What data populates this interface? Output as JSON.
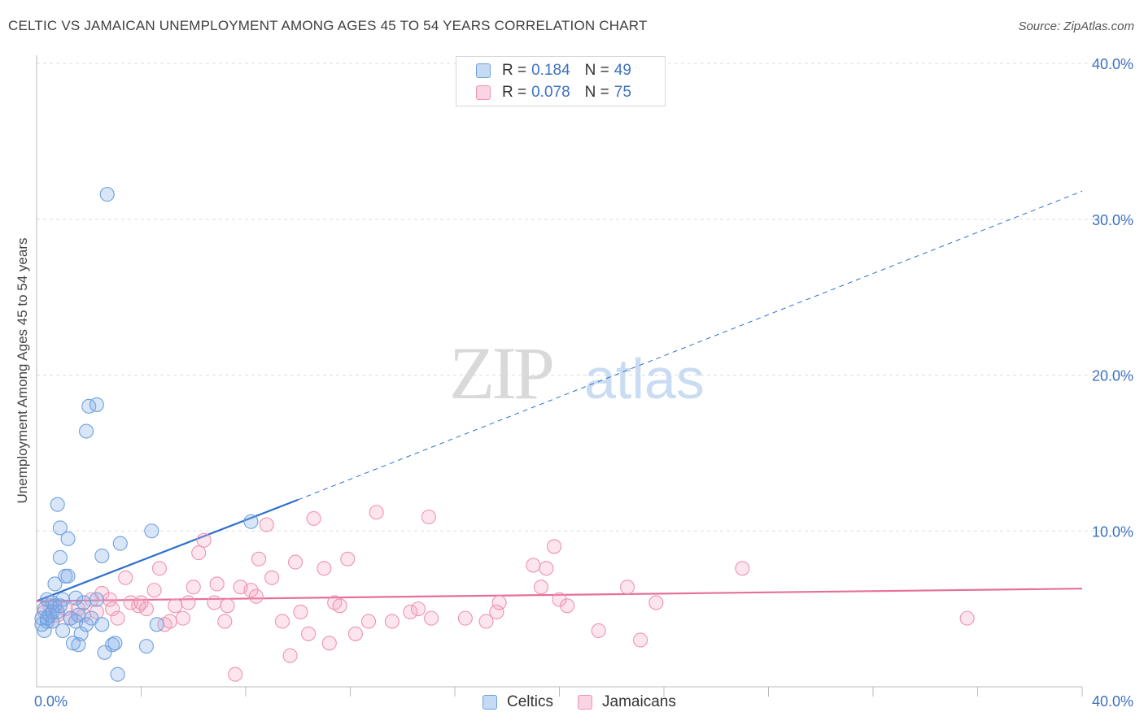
{
  "title": "CELTIC VS JAMAICAN UNEMPLOYMENT AMONG AGES 45 TO 54 YEARS CORRELATION CHART",
  "source": "Source: ZipAtlas.com",
  "watermark": {
    "zip": "ZIP",
    "atlas": "atlas"
  },
  "colors": {
    "celtic_fill": "rgba(126,172,232,0.30)",
    "celtic_stroke": "#6fa0dd",
    "celtic_line": "#2e6fcf",
    "jamaican_fill": "rgba(244,160,190,0.28)",
    "jamaican_stroke": "#ee93b3",
    "jamaican_line": "#e4709a",
    "axis_text": "#3d72c2"
  },
  "legend": {
    "celtic": {
      "r_label": "R =",
      "r_value": "0.184",
      "n_label": "N =",
      "n_value": "49"
    },
    "jamaican": {
      "r_label": "R =",
      "r_value": "0.078",
      "n_label": "N =",
      "n_value": "75"
    }
  },
  "chart_data": {
    "type": "scatter",
    "title": "CELTIC VS JAMAICAN UNEMPLOYMENT AMONG AGES 45 TO 54 YEARS CORRELATION CHART",
    "xlabel": "",
    "ylabel": "Unemployment Among Ages 45 to 54 years",
    "xlim": [
      0,
      40
    ],
    "ylim": [
      0,
      40
    ],
    "x_tick_labels": [
      "0.0%",
      "40.0%"
    ],
    "y_tick_labels": [
      "10.0%",
      "20.0%",
      "30.0%",
      "40.0%"
    ],
    "y_ticks": [
      10,
      20,
      30,
      40
    ],
    "grid": true,
    "legend_position": "bottom-center",
    "series": [
      {
        "name": "Celtics",
        "r": 0.184,
        "n": 49,
        "trend": {
          "x0": 0,
          "y0": 5.5,
          "x1": 10,
          "y1": 12.0,
          "dashed_to_x": 40,
          "dashed_to_y": 31.8
        },
        "points": [
          [
            0.2,
            4.0
          ],
          [
            0.2,
            4.4
          ],
          [
            0.3,
            3.6
          ],
          [
            0.3,
            5.0
          ],
          [
            0.4,
            4.2
          ],
          [
            0.4,
            5.6
          ],
          [
            0.5,
            4.6
          ],
          [
            0.6,
            5.4
          ],
          [
            0.6,
            4.2
          ],
          [
            0.7,
            6.6
          ],
          [
            0.7,
            5.2
          ],
          [
            0.8,
            4.8
          ],
          [
            0.8,
            11.7
          ],
          [
            0.9,
            10.2
          ],
          [
            0.9,
            8.3
          ],
          [
            1.0,
            3.6
          ],
          [
            1.0,
            5.6
          ],
          [
            1.1,
            7.1
          ],
          [
            1.2,
            9.5
          ],
          [
            1.2,
            7.1
          ],
          [
            1.3,
            4.4
          ],
          [
            1.4,
            2.8
          ],
          [
            1.5,
            4.2
          ],
          [
            1.5,
            5.7
          ],
          [
            1.6,
            4.6
          ],
          [
            1.7,
            3.4
          ],
          [
            1.6,
            2.7
          ],
          [
            1.8,
            5.4
          ],
          [
            1.9,
            4.0
          ],
          [
            2.0,
            18.0
          ],
          [
            1.9,
            16.4
          ],
          [
            2.3,
            18.1
          ],
          [
            2.5,
            4.0
          ],
          [
            2.5,
            8.4
          ],
          [
            2.6,
            2.2
          ],
          [
            2.7,
            31.6
          ],
          [
            2.9,
            2.7
          ],
          [
            3.0,
            2.8
          ],
          [
            3.1,
            0.8
          ],
          [
            3.2,
            9.2
          ],
          [
            2.3,
            5.6
          ],
          [
            4.2,
            2.6
          ],
          [
            4.4,
            10.0
          ],
          [
            4.6,
            4.0
          ],
          [
            8.2,
            10.6
          ],
          [
            0.4,
            4.4
          ],
          [
            0.6,
            4.8
          ],
          [
            0.9,
            5.2
          ],
          [
            2.1,
            4.4
          ]
        ]
      },
      {
        "name": "Jamaicans",
        "r": 0.078,
        "n": 75,
        "trend": {
          "x0": 0,
          "y0": 5.5,
          "x1": 40,
          "y1": 6.3
        },
        "points": [
          [
            0.3,
            4.8
          ],
          [
            0.5,
            5.2
          ],
          [
            0.6,
            4.2
          ],
          [
            0.8,
            4.6
          ],
          [
            1.1,
            5.0
          ],
          [
            1.3,
            4.4
          ],
          [
            1.6,
            5.0
          ],
          [
            1.8,
            4.6
          ],
          [
            2.1,
            5.6
          ],
          [
            2.3,
            4.8
          ],
          [
            2.5,
            6.0
          ],
          [
            2.9,
            5.0
          ],
          [
            3.1,
            4.4
          ],
          [
            3.4,
            7.0
          ],
          [
            3.6,
            5.4
          ],
          [
            3.9,
            5.2
          ],
          [
            4.0,
            5.4
          ],
          [
            4.2,
            5.0
          ],
          [
            4.5,
            6.2
          ],
          [
            4.7,
            7.6
          ],
          [
            4.9,
            4.0
          ],
          [
            5.1,
            4.2
          ],
          [
            5.3,
            5.2
          ],
          [
            5.6,
            4.4
          ],
          [
            5.8,
            5.4
          ],
          [
            6.0,
            6.4
          ],
          [
            6.2,
            8.6
          ],
          [
            6.4,
            9.4
          ],
          [
            6.8,
            5.4
          ],
          [
            6.9,
            6.6
          ],
          [
            7.2,
            4.2
          ],
          [
            7.3,
            5.2
          ],
          [
            7.6,
            0.8
          ],
          [
            7.8,
            6.4
          ],
          [
            8.2,
            6.2
          ],
          [
            8.4,
            5.8
          ],
          [
            8.5,
            8.2
          ],
          [
            8.8,
            10.4
          ],
          [
            9.0,
            7.0
          ],
          [
            9.4,
            4.2
          ],
          [
            9.7,
            2.0
          ],
          [
            9.9,
            8.0
          ],
          [
            10.1,
            4.8
          ],
          [
            10.4,
            3.4
          ],
          [
            10.6,
            10.8
          ],
          [
            11.0,
            7.6
          ],
          [
            11.2,
            2.8
          ],
          [
            11.4,
            5.4
          ],
          [
            11.6,
            5.2
          ],
          [
            11.9,
            8.2
          ],
          [
            12.2,
            3.4
          ],
          [
            12.7,
            4.2
          ],
          [
            13.0,
            11.2
          ],
          [
            13.6,
            4.2
          ],
          [
            14.3,
            4.8
          ],
          [
            14.6,
            5.0
          ],
          [
            15.0,
            10.9
          ],
          [
            15.1,
            4.4
          ],
          [
            16.4,
            4.4
          ],
          [
            17.2,
            4.2
          ],
          [
            17.6,
            4.8
          ],
          [
            17.7,
            5.4
          ],
          [
            19.0,
            7.8
          ],
          [
            19.3,
            6.4
          ],
          [
            19.5,
            7.6
          ],
          [
            19.8,
            9.0
          ],
          [
            20.0,
            5.6
          ],
          [
            20.3,
            5.2
          ],
          [
            21.5,
            3.6
          ],
          [
            22.6,
            6.4
          ],
          [
            23.1,
            3.0
          ],
          [
            23.7,
            5.4
          ],
          [
            27.0,
            7.6
          ],
          [
            35.6,
            4.4
          ],
          [
            2.8,
            5.6
          ]
        ]
      }
    ]
  }
}
